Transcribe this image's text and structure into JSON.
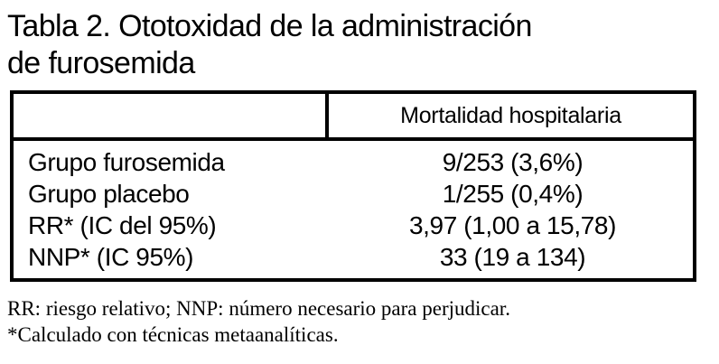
{
  "title": {
    "line1": "Tabla 2. Ototoxidad de la administración",
    "line2": "de furosemida"
  },
  "table": {
    "header": {
      "col1": "",
      "col2": "Mortalidad hospitalaria"
    },
    "rows": [
      {
        "label": "Grupo furosemida",
        "value": "9/253 (3,6%)"
      },
      {
        "label": "Grupo placebo",
        "value": "1/255 (0,4%)"
      },
      {
        "label": "RR* (IC del 95%)",
        "value": "3,97 (1,00 a 15,78)"
      },
      {
        "label": "NNP* (IC 95%)",
        "value": "33 (19 a 134)"
      }
    ]
  },
  "footnotes": {
    "line1": "RR: riesgo relativo; NNP: número necesario para perjudicar.",
    "line2": "*Calculado con técnicas metaanalíticas."
  },
  "colors": {
    "text": "#000000",
    "background": "#ffffff",
    "border": "#000000"
  }
}
